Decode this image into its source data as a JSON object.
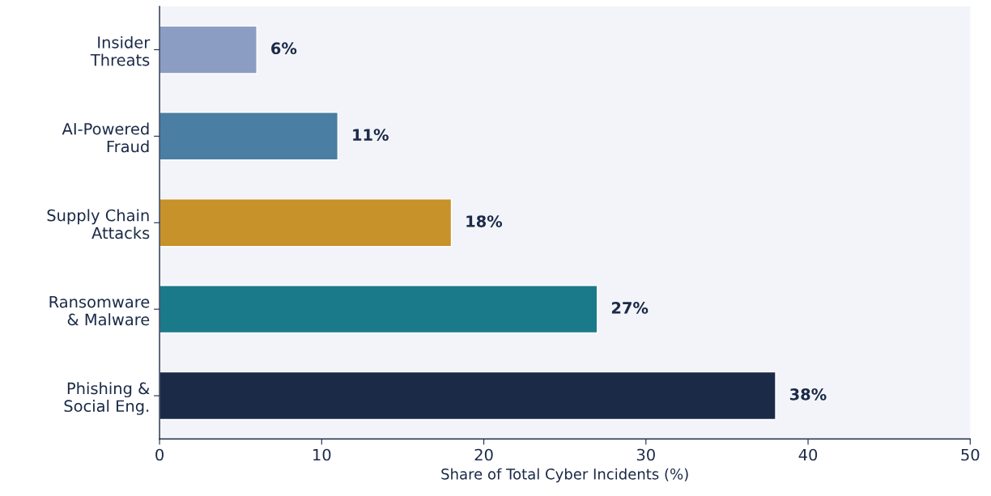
{
  "chart_data": {
    "type": "bar",
    "orientation": "horizontal",
    "categories": [
      "Insider\nThreats",
      "AI-Powered\nFraud",
      "Supply Chain\nAttacks",
      "Ransomware\n& Malware",
      "Phishing &\nSocial Eng."
    ],
    "values": [
      6,
      11,
      18,
      27,
      38
    ],
    "colors": [
      "#8c9dc4",
      "#4a7ea3",
      "#c8922a",
      "#1a7a8a",
      "#1b2a47"
    ],
    "value_labels": [
      "6%",
      "11%",
      "18%",
      "27%",
      "38%"
    ],
    "xlabel": "Share of Total Cyber Incidents (%)",
    "xlim": [
      0,
      50
    ],
    "xticks": [
      0,
      10,
      20,
      30,
      40,
      50
    ],
    "grid": false,
    "legend": false
  }
}
